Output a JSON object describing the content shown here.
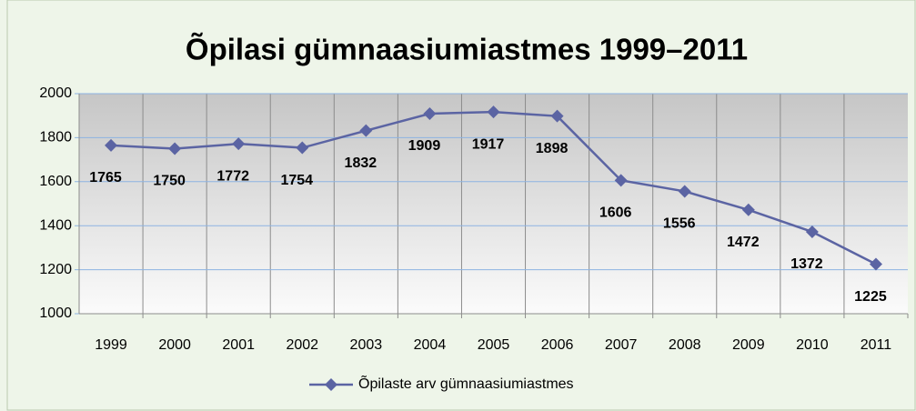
{
  "chart_data": {
    "type": "line",
    "title": "Õpilasi gümnaasiumiastmes 1999–2011",
    "categories": [
      "1999",
      "2000",
      "2001",
      "2002",
      "2003",
      "2004",
      "2005",
      "2006",
      "2007",
      "2008",
      "2009",
      "2010",
      "2011"
    ],
    "series": [
      {
        "name": "Õpilaste arv gümnaasiumiastmes",
        "color": "#5b64a3",
        "values": [
          1765,
          1750,
          1772,
          1754,
          1832,
          1909,
          1917,
          1898,
          1606,
          1556,
          1472,
          1372,
          1225
        ]
      }
    ],
    "ylim": [
      1000,
      2000
    ],
    "yticks": [
      1000,
      1200,
      1400,
      1600,
      1800,
      2000
    ],
    "grid": true,
    "legend": "bottom"
  }
}
